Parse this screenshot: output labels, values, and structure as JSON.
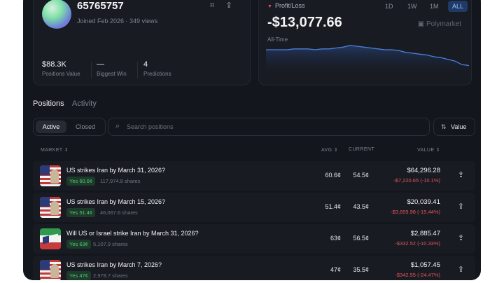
{
  "profile": {
    "username": "65765757",
    "joined": "Joined Feb 2026 · 349 views",
    "icons": [
      "scan-icon",
      "share-icon"
    ],
    "stats": [
      {
        "value": "$88.3K",
        "label": "Positions Value"
      },
      {
        "value": "—",
        "label": "Biggest Win"
      },
      {
        "value": "4",
        "label": "Predictions"
      }
    ]
  },
  "pnl": {
    "title": "Profit/Loss",
    "value": "-$13,077.66",
    "period": "All-Time",
    "brand": "Polymarket",
    "ranges": [
      "1D",
      "1W",
      "1M",
      "ALL"
    ],
    "active_range": "ALL",
    "chart_data": {
      "type": "area",
      "values": [
        44,
        44,
        44,
        44,
        45,
        45,
        45,
        44,
        45,
        45,
        46,
        47,
        49,
        48,
        47,
        46,
        45,
        44,
        44,
        43,
        41,
        40,
        39,
        38,
        36,
        35,
        33,
        31,
        27,
        26
      ],
      "color": "#4a7fd8"
    }
  },
  "tabs": {
    "positions": "Positions",
    "activity": "Activity"
  },
  "filter": {
    "active": "Active",
    "closed": "Closed"
  },
  "search": {
    "placeholder": "Search positions"
  },
  "sort": {
    "label": "Value"
  },
  "columns": {
    "market": "MARKET",
    "avg": "AVG",
    "current": "CURRENT",
    "value": "VALUE"
  },
  "positions": [
    {
      "question": "US strikes Iran by March 31, 2026?",
      "outcome": "Yes 60.6¢",
      "shares": "117,974.8 shares",
      "avg": "60.6¢",
      "current": "54.5¢",
      "value": "$64,296.28",
      "change": "-$7,220.65 (-10.1%)",
      "image": "us-flag"
    },
    {
      "question": "US strikes Iran by March 15, 2026?",
      "outcome": "Yes 51.4¢",
      "shares": "46,067.6 shares",
      "avg": "51.4¢",
      "current": "43.5¢",
      "value": "$20,039.41",
      "change": "-$3,659.98 (-15.44%)",
      "image": "us-flag"
    },
    {
      "question": "Will US or Israel strike Iran by March 31, 2026?",
      "outcome": "Yes 63¢",
      "shares": "5,107.9 shares",
      "avg": "63¢",
      "current": "56.5¢",
      "value": "$2,885.47",
      "change": "-$332.52 (-10.33%)",
      "image": "iran-flag"
    },
    {
      "question": "US strikes Iran by March 7, 2026?",
      "outcome": "Yes 47¢",
      "shares": "2,978.7 shares",
      "avg": "47¢",
      "current": "35.5¢",
      "value": "$1,057.45",
      "change": "-$342.55 (-24.47%)",
      "image": "us-flag"
    }
  ]
}
